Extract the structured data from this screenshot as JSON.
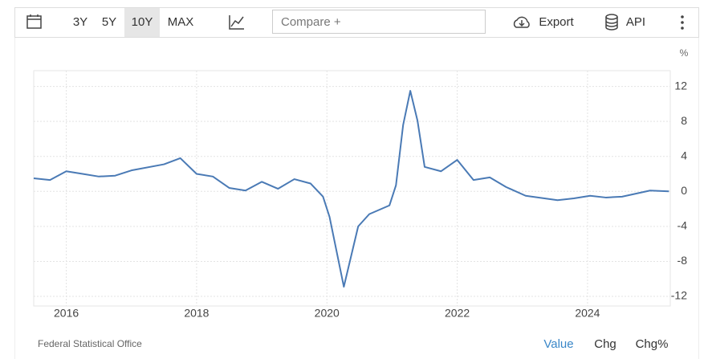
{
  "toolbar": {
    "ranges": [
      "3Y",
      "5Y",
      "10Y",
      "MAX"
    ],
    "compare": "Compare +",
    "export": "Export",
    "api": "API"
  },
  "chart_data": {
    "type": "line",
    "unit": "%",
    "x": [
      2015.5,
      2015.75,
      2016.0,
      2016.25,
      2016.5,
      2016.75,
      2017.0,
      2017.5,
      2017.75,
      2018.0,
      2018.25,
      2018.5,
      2018.75,
      2019.0,
      2019.25,
      2019.5,
      2019.75,
      2019.94,
      2020.04,
      2020.26,
      2020.48,
      2020.65,
      2020.96,
      2021.06,
      2021.17,
      2021.28,
      2021.39,
      2021.5,
      2021.75,
      2022.0,
      2022.25,
      2022.5,
      2022.75,
      2023.05,
      2023.54,
      2023.79,
      2024.04,
      2024.28,
      2024.53,
      2024.96,
      2025.25
    ],
    "values": [
      1.5,
      1.3,
      2.3,
      2.0,
      1.7,
      1.8,
      2.4,
      3.1,
      3.8,
      2.0,
      1.7,
      0.4,
      0.1,
      1.1,
      0.3,
      1.4,
      0.9,
      -0.6,
      -2.9,
      -10.9,
      -4.0,
      -2.6,
      -1.6,
      0.7,
      7.6,
      11.5,
      8.1,
      2.8,
      2.3,
      3.6,
      1.3,
      1.6,
      0.5,
      -0.5,
      -1.0,
      -0.8,
      -0.5,
      -0.7,
      -0.6,
      0.1,
      0.0
    ],
    "color": "#4a7ab5",
    "xlim": [
      2015.5,
      2025.27
    ],
    "ylim": [
      -13.1,
      13.8
    ],
    "xticks": [
      2016,
      2018,
      2020,
      2022,
      2024
    ],
    "yticks": [
      12,
      8,
      4,
      0,
      -4,
      -8,
      -12
    ],
    "grid": true,
    "source": "Federal Statistical Office",
    "tabs": [
      "Value",
      "Chg",
      "Chg%"
    ]
  }
}
